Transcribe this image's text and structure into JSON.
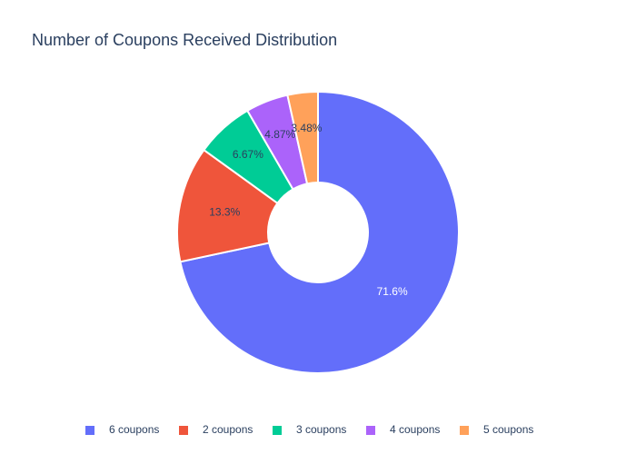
{
  "chart_data": {
    "type": "pie",
    "title": "Number of Coupons Received Distribution",
    "hole": true,
    "legend_position": "bottom",
    "slices": [
      {
        "label": "6 coupons",
        "percent": 71.6,
        "percent_label": "71.6%",
        "color": "#636efa",
        "text_color": "#ffffff"
      },
      {
        "label": "2 coupons",
        "percent": 13.3,
        "percent_label": "13.3%",
        "color": "#ef553b",
        "text_color": "#2a3f5f"
      },
      {
        "label": "3 coupons",
        "percent": 6.67,
        "percent_label": "6.67%",
        "color": "#00cc96",
        "text_color": "#2a3f5f"
      },
      {
        "label": "4 coupons",
        "percent": 4.87,
        "percent_label": "4.87%",
        "color": "#ab63fa",
        "text_color": "#2a3f5f"
      },
      {
        "label": "5 coupons",
        "percent": 3.48,
        "percent_label": "3.48%",
        "color": "#ffa15a",
        "text_color": "#2a3f5f"
      }
    ]
  }
}
